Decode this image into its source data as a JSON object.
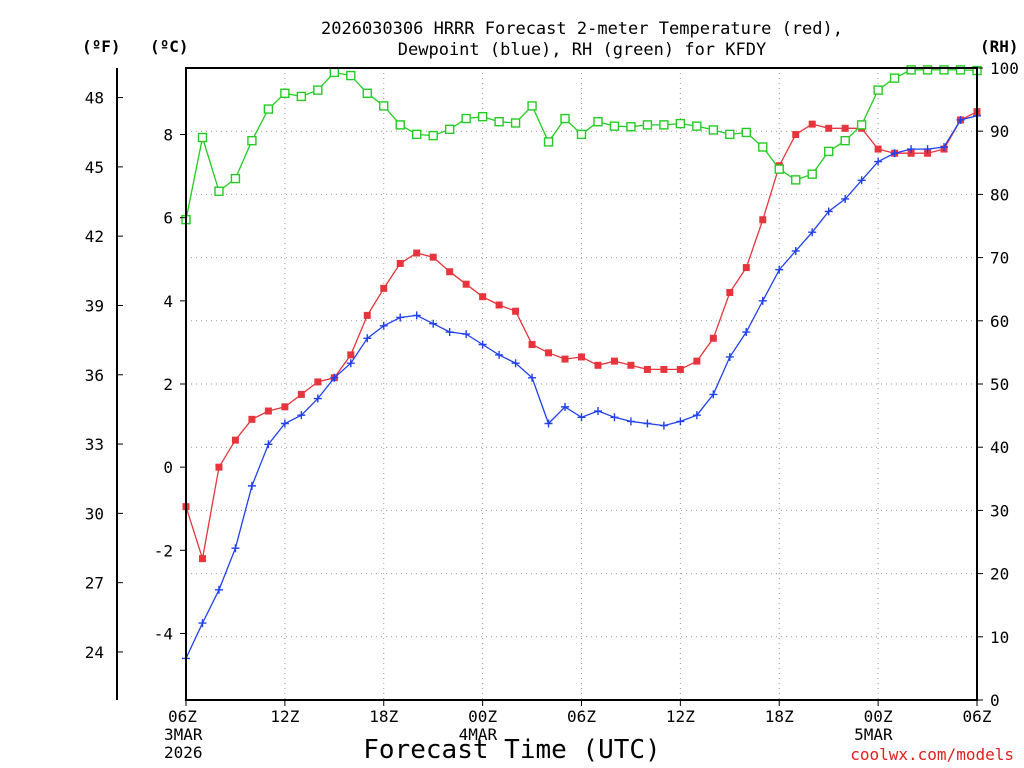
{
  "chart_data": {
    "type": "line",
    "title_lines": [
      "2026030306 HRRR Forecast 2-meter Temperature (red),",
      "Dewpoint (blue), RH (green) for KFDY"
    ],
    "xlabel": "Forecast Time (UTC)",
    "credit": "coolwx.com/models",
    "units": {
      "fahrenheit": "(ºF)",
      "celsius": "(ºC)",
      "rh": "(RH)"
    },
    "forecast_hours": [
      0,
      1,
      2,
      3,
      4,
      5,
      6,
      7,
      8,
      9,
      10,
      11,
      12,
      13,
      14,
      15,
      16,
      17,
      18,
      19,
      20,
      21,
      22,
      23,
      24,
      25,
      26,
      27,
      28,
      29,
      30,
      31,
      32,
      33,
      34,
      35,
      36,
      37,
      38,
      39,
      40,
      41,
      42,
      43,
      44,
      45,
      46,
      47,
      48
    ],
    "x_ticks": [
      {
        "hour": 0,
        "label": "06Z",
        "sub": [
          "3MAR",
          "2026"
        ]
      },
      {
        "hour": 6,
        "label": "12Z",
        "sub": []
      },
      {
        "hour": 12,
        "label": "18Z",
        "sub": []
      },
      {
        "hour": 18,
        "label": "00Z",
        "sub": [
          "4MAR"
        ]
      },
      {
        "hour": 24,
        "label": "06Z",
        "sub": []
      },
      {
        "hour": 30,
        "label": "12Z",
        "sub": []
      },
      {
        "hour": 36,
        "label": "18Z",
        "sub": []
      },
      {
        "hour": 42,
        "label": "00Z",
        "sub": [
          "5MAR"
        ]
      },
      {
        "hour": 48,
        "label": "06Z",
        "sub": []
      }
    ],
    "celsius_range": [
      -5.6,
      9.6
    ],
    "celsius_ticks": [
      "-4",
      "-2",
      "0",
      "2",
      "4",
      "6",
      "8"
    ],
    "fahrenheit_ticks": [
      "24",
      "27",
      "30",
      "33",
      "36",
      "39",
      "42",
      "45",
      "48"
    ],
    "rh_range": [
      0,
      100
    ],
    "rh_ticks": [
      "0",
      "10",
      "20",
      "30",
      "40",
      "50",
      "60",
      "70",
      "80",
      "90",
      "100"
    ],
    "series": [
      {
        "name": "2-meter Temperature",
        "unit": "C",
        "color": "#e8343c",
        "marker": "filled-square",
        "values": [
          -0.95,
          -2.2,
          0,
          0.65,
          1.15,
          1.35,
          1.45,
          1.75,
          2.05,
          2.15,
          2.7,
          3.65,
          4.3,
          4.9,
          5.15,
          5.05,
          4.7,
          4.4,
          4.1,
          3.9,
          3.75,
          2.95,
          2.75,
          2.6,
          2.65,
          2.45,
          2.55,
          2.45,
          2.35,
          2.35,
          2.35,
          2.55,
          3.1,
          4.2,
          4.8,
          5.95,
          7.25,
          8.0,
          8.25,
          8.15,
          8.15,
          8.15,
          7.65,
          7.55,
          7.55,
          7.55,
          7.65,
          8.35,
          8.55
        ]
      },
      {
        "name": "Dewpoint",
        "unit": "C",
        "color": "#2040f0",
        "marker": "plus",
        "values": [
          -4.6,
          -3.75,
          -2.95,
          -1.95,
          -0.45,
          0.55,
          1.05,
          1.25,
          1.65,
          2.15,
          2.5,
          3.1,
          3.4,
          3.6,
          3.65,
          3.45,
          3.25,
          3.2,
          2.95,
          2.7,
          2.5,
          2.15,
          1.05,
          1.45,
          1.2,
          1.35,
          1.2,
          1.1,
          1.05,
          1.0,
          1.1,
          1.25,
          1.75,
          2.65,
          3.25,
          4.0,
          4.75,
          5.2,
          5.65,
          6.15,
          6.45,
          6.9,
          7.35,
          7.55,
          7.65,
          7.65,
          7.7,
          8.35,
          8.45
        ]
      },
      {
        "name": "RH",
        "unit": "%",
        "color": "#22cc22",
        "marker": "open-square",
        "values": [
          76,
          89,
          80.5,
          82.5,
          88.5,
          93.5,
          96,
          95.5,
          96.5,
          99.3,
          98.8,
          96,
          94,
          91,
          89.5,
          89.3,
          90.3,
          92,
          92.3,
          91.5,
          91.3,
          94,
          88.3,
          92,
          89.5,
          91.5,
          90.8,
          90.7,
          91,
          91,
          91.2,
          90.8,
          90.2,
          89.5,
          89.8,
          87.5,
          84,
          82.3,
          83.2,
          86.8,
          88.5,
          91,
          96.5,
          98.4,
          99.7,
          99.7,
          99.7,
          99.7,
          99.6
        ]
      }
    ]
  }
}
